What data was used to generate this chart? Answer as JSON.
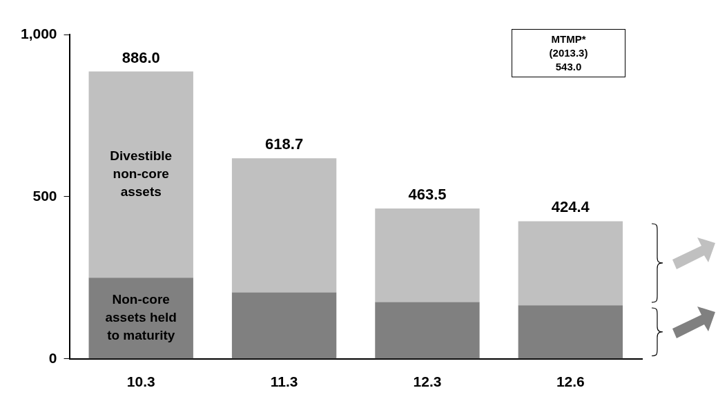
{
  "chart_data": {
    "type": "bar",
    "stacked": true,
    "categories": [
      "10.3",
      "11.3",
      "12.3",
      "12.6"
    ],
    "series": [
      {
        "name": "Non-core assets held to maturity",
        "color": "#808080",
        "values": [
          250,
          205,
          175,
          165
        ]
      },
      {
        "name": "Divestible non-core assets",
        "color": "#c0c0c0",
        "values": [
          636,
          413.7,
          288.5,
          259.4
        ]
      }
    ],
    "totals": [
      "886.0",
      "618.7",
      "463.5",
      "424.4"
    ],
    "ylim": [
      0,
      1000
    ],
    "yticks": [
      0,
      500,
      {
        "value": 1000,
        "label": "1,000"
      }
    ],
    "grid": false,
    "legend": false,
    "annotations": [
      "MTMP*\n(2013.3)\n543.0"
    ]
  }
}
